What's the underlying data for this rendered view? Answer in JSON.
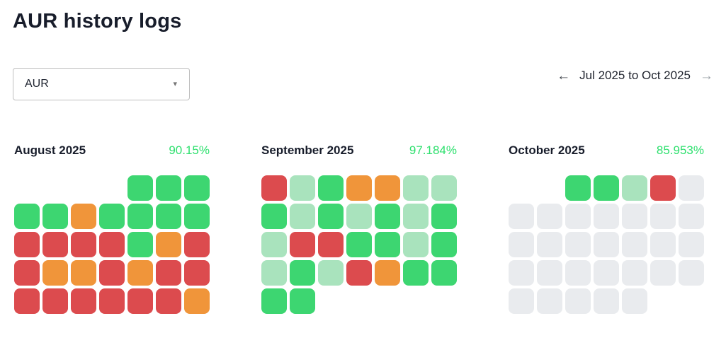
{
  "title": "AUR history logs",
  "dropdown": {
    "value": "AUR",
    "caret_icon": "▾"
  },
  "date_nav": {
    "prev_icon": "←",
    "label": "Jul 2025 to Oct 2025",
    "next_icon": "→"
  },
  "colors": {
    "green": "#3dd671",
    "lightgreen": "#a9e3bd",
    "orange": "#f0953a",
    "red": "#dc4b4e",
    "gray": "#e9ebee",
    "percent_text": "#2ee06e"
  },
  "months": [
    {
      "name": "August 2025",
      "percent": "90.15%",
      "cells": [
        [
          "empty",
          "empty",
          "empty",
          "empty",
          "green",
          "green",
          "green"
        ],
        [
          "green",
          "green",
          "orange",
          "green",
          "green",
          "green",
          "green"
        ],
        [
          "red",
          "red",
          "red",
          "red",
          "green",
          "orange",
          "red"
        ],
        [
          "red",
          "orange",
          "orange",
          "red",
          "orange",
          "red",
          "red"
        ],
        [
          "red",
          "red",
          "red",
          "red",
          "red",
          "red",
          "orange"
        ]
      ]
    },
    {
      "name": "September 2025",
      "percent": "97.184%",
      "cells": [
        [
          "red",
          "lightgreen",
          "green",
          "orange",
          "orange",
          "lightgreen",
          "lightgreen"
        ],
        [
          "green",
          "lightgreen",
          "green",
          "lightgreen",
          "green",
          "lightgreen",
          "green"
        ],
        [
          "lightgreen",
          "red",
          "red",
          "green",
          "green",
          "lightgreen",
          "green"
        ],
        [
          "lightgreen",
          "green",
          "lightgreen",
          "red",
          "orange",
          "green",
          "green"
        ],
        [
          "green",
          "green",
          "empty",
          "empty",
          "empty",
          "empty",
          "empty"
        ]
      ]
    },
    {
      "name": "October 2025",
      "percent": "85.953%",
      "cells": [
        [
          "empty",
          "empty",
          "green",
          "green",
          "lightgreen",
          "red",
          "gray"
        ],
        [
          "gray",
          "gray",
          "gray",
          "gray",
          "gray",
          "gray",
          "gray"
        ],
        [
          "gray",
          "gray",
          "gray",
          "gray",
          "gray",
          "gray",
          "gray"
        ],
        [
          "gray",
          "gray",
          "gray",
          "gray",
          "gray",
          "gray",
          "gray"
        ],
        [
          "gray",
          "gray",
          "gray",
          "gray",
          "gray",
          "empty",
          "empty"
        ]
      ]
    }
  ],
  "chart_data": {
    "type": "heatmap",
    "title": "AUR history logs",
    "layout": "3 monthly calendar heatmaps, 7 columns per week, Monday-start weeks",
    "months": [
      {
        "name": "August 2025",
        "percent": "90.15%"
      },
      {
        "name": "September 2025",
        "percent": "97.184%"
      },
      {
        "name": "October 2025",
        "percent": "85.953%"
      }
    ],
    "cell_states": [
      "green",
      "lightgreen",
      "orange",
      "red",
      "gray",
      "empty"
    ]
  }
}
